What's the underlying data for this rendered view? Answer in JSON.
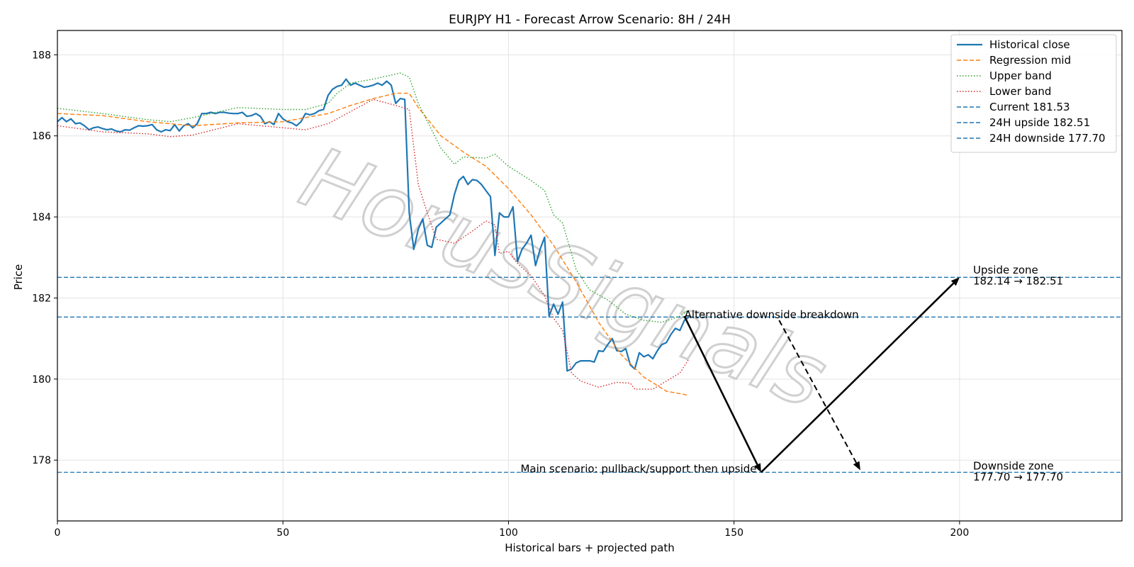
{
  "chart_data": {
    "type": "line",
    "title": "EURJPY H1 - Forecast Arrow Scenario: 8H / 24H",
    "xlabel": "Historical bars + projected path",
    "ylabel": "Price",
    "xlim": [
      0,
      236
    ],
    "ylim": [
      176.5,
      188.6
    ],
    "grid": true,
    "x_ticks": [
      0,
      50,
      100,
      150,
      200
    ],
    "y_ticks": [
      178,
      180,
      182,
      184,
      186,
      188
    ],
    "legend_position": "top-right",
    "watermark": "HorusSignals",
    "series": [
      {
        "name": "Historical close",
        "color": "#1f77b4",
        "style": "solid",
        "points": [
          [
            0,
            186.35
          ],
          [
            1,
            186.45
          ],
          [
            2,
            186.35
          ],
          [
            3,
            186.42
          ],
          [
            4,
            186.3
          ],
          [
            5,
            186.32
          ],
          [
            6,
            186.25
          ],
          [
            7,
            186.15
          ],
          [
            8,
            186.2
          ],
          [
            9,
            186.22
          ],
          [
            10,
            186.18
          ],
          [
            11,
            186.15
          ],
          [
            12,
            186.17
          ],
          [
            13,
            186.12
          ],
          [
            14,
            186.1
          ],
          [
            15,
            186.15
          ],
          [
            16,
            186.14
          ],
          [
            17,
            186.2
          ],
          [
            18,
            186.25
          ],
          [
            19,
            186.24
          ],
          [
            20,
            186.25
          ],
          [
            21,
            186.28
          ],
          [
            22,
            186.15
          ],
          [
            23,
            186.1
          ],
          [
            24,
            186.15
          ],
          [
            25,
            186.13
          ],
          [
            26,
            186.28
          ],
          [
            27,
            186.12
          ],
          [
            28,
            186.25
          ],
          [
            29,
            186.3
          ],
          [
            30,
            186.2
          ],
          [
            31,
            186.3
          ],
          [
            32,
            186.55
          ],
          [
            33,
            186.55
          ],
          [
            34,
            186.58
          ],
          [
            35,
            186.55
          ],
          [
            36,
            186.58
          ],
          [
            37,
            186.58
          ],
          [
            38,
            186.56
          ],
          [
            39,
            186.55
          ],
          [
            40,
            186.55
          ],
          [
            41,
            186.58
          ],
          [
            42,
            186.48
          ],
          [
            43,
            186.5
          ],
          [
            44,
            186.55
          ],
          [
            45,
            186.48
          ],
          [
            46,
            186.3
          ],
          [
            47,
            186.35
          ],
          [
            48,
            186.28
          ],
          [
            49,
            186.55
          ],
          [
            50,
            186.42
          ],
          [
            51,
            186.35
          ],
          [
            52,
            186.32
          ],
          [
            53,
            186.25
          ],
          [
            54,
            186.35
          ],
          [
            55,
            186.55
          ],
          [
            56,
            186.52
          ],
          [
            57,
            186.55
          ],
          [
            58,
            186.62
          ],
          [
            59,
            186.65
          ],
          [
            60,
            187.0
          ],
          [
            61,
            187.15
          ],
          [
            62,
            187.22
          ],
          [
            63,
            187.25
          ],
          [
            64,
            187.4
          ],
          [
            65,
            187.25
          ],
          [
            66,
            187.3
          ],
          [
            67,
            187.25
          ],
          [
            68,
            187.2
          ],
          [
            69,
            187.22
          ],
          [
            70,
            187.25
          ],
          [
            71,
            187.3
          ],
          [
            72,
            187.25
          ],
          [
            73,
            187.35
          ],
          [
            74,
            187.25
          ],
          [
            75,
            186.8
          ],
          [
            76,
            186.92
          ],
          [
            77,
            186.9
          ],
          [
            78,
            184.1
          ],
          [
            79,
            183.2
          ],
          [
            80,
            183.7
          ],
          [
            81,
            183.95
          ],
          [
            82,
            183.3
          ],
          [
            83,
            183.25
          ],
          [
            84,
            183.75
          ],
          [
            85,
            183.85
          ],
          [
            86,
            183.95
          ],
          [
            87,
            184.05
          ],
          [
            88,
            184.55
          ],
          [
            89,
            184.9
          ],
          [
            90,
            185.0
          ],
          [
            91,
            184.8
          ],
          [
            92,
            184.92
          ],
          [
            93,
            184.9
          ],
          [
            94,
            184.8
          ],
          [
            95,
            184.65
          ],
          [
            96,
            184.5
          ],
          [
            97,
            183.05
          ],
          [
            98,
            184.1
          ],
          [
            99,
            184.0
          ],
          [
            100,
            184.0
          ],
          [
            101,
            184.25
          ],
          [
            102,
            182.9
          ],
          [
            103,
            183.2
          ],
          [
            104,
            183.35
          ],
          [
            105,
            183.55
          ],
          [
            106,
            182.8
          ],
          [
            107,
            183.2
          ],
          [
            108,
            183.5
          ],
          [
            109,
            181.55
          ],
          [
            110,
            181.85
          ],
          [
            111,
            181.6
          ],
          [
            112,
            181.9
          ],
          [
            113,
            180.2
          ],
          [
            114,
            180.25
          ],
          [
            115,
            180.4
          ],
          [
            116,
            180.45
          ],
          [
            117,
            180.45
          ],
          [
            118,
            180.45
          ],
          [
            119,
            180.42
          ],
          [
            120,
            180.7
          ],
          [
            121,
            180.68
          ],
          [
            122,
            180.85
          ],
          [
            123,
            181.0
          ],
          [
            124,
            180.7
          ],
          [
            125,
            180.68
          ],
          [
            126,
            180.75
          ],
          [
            127,
            180.35
          ],
          [
            128,
            180.25
          ],
          [
            129,
            180.65
          ],
          [
            130,
            180.55
          ],
          [
            131,
            180.6
          ],
          [
            132,
            180.5
          ],
          [
            133,
            180.7
          ],
          [
            134,
            180.85
          ],
          [
            135,
            180.9
          ],
          [
            136,
            181.1
          ],
          [
            137,
            181.25
          ],
          [
            138,
            181.2
          ],
          [
            139,
            181.45
          ],
          [
            140,
            181.53
          ]
        ]
      },
      {
        "name": "Regression mid",
        "color": "#ff7f0e",
        "style": "dashed",
        "points": [
          [
            0,
            186.55
          ],
          [
            10,
            186.5
          ],
          [
            20,
            186.35
          ],
          [
            30,
            186.25
          ],
          [
            40,
            186.32
          ],
          [
            50,
            186.35
          ],
          [
            60,
            186.55
          ],
          [
            65,
            186.75
          ],
          [
            70,
            186.92
          ],
          [
            75,
            187.05
          ],
          [
            78,
            187.05
          ],
          [
            80,
            186.7
          ],
          [
            85,
            186.0
          ],
          [
            90,
            185.6
          ],
          [
            95,
            185.25
          ],
          [
            100,
            184.7
          ],
          [
            105,
            184.05
          ],
          [
            110,
            183.3
          ],
          [
            115,
            182.4
          ],
          [
            120,
            181.4
          ],
          [
            125,
            180.6
          ],
          [
            130,
            180.05
          ],
          [
            135,
            179.7
          ],
          [
            140,
            179.6
          ]
        ]
      },
      {
        "name": "Upper band",
        "color": "#2ca02c",
        "style": "dotted",
        "points": [
          [
            0,
            186.68
          ],
          [
            10,
            186.55
          ],
          [
            20,
            186.4
          ],
          [
            25,
            186.35
          ],
          [
            30,
            186.45
          ],
          [
            40,
            186.7
          ],
          [
            50,
            186.65
          ],
          [
            55,
            186.65
          ],
          [
            60,
            186.8
          ],
          [
            62,
            187.05
          ],
          [
            65,
            187.3
          ],
          [
            70,
            187.4
          ],
          [
            74,
            187.5
          ],
          [
            76,
            187.55
          ],
          [
            78,
            187.45
          ],
          [
            80,
            186.8
          ],
          [
            85,
            185.7
          ],
          [
            88,
            185.3
          ],
          [
            90,
            185.48
          ],
          [
            95,
            185.45
          ],
          [
            97,
            185.55
          ],
          [
            100,
            185.25
          ],
          [
            105,
            184.9
          ],
          [
            108,
            184.65
          ],
          [
            110,
            184.05
          ],
          [
            112,
            183.85
          ],
          [
            115,
            182.7
          ],
          [
            118,
            182.2
          ],
          [
            122,
            181.95
          ],
          [
            126,
            181.6
          ],
          [
            130,
            181.45
          ],
          [
            134,
            181.4
          ],
          [
            138,
            181.55
          ],
          [
            140,
            181.7
          ]
        ]
      },
      {
        "name": "Lower band",
        "color": "#d62728",
        "style": "dotted",
        "points": [
          [
            0,
            186.25
          ],
          [
            10,
            186.1
          ],
          [
            20,
            186.05
          ],
          [
            25,
            185.98
          ],
          [
            30,
            186.02
          ],
          [
            40,
            186.3
          ],
          [
            50,
            186.2
          ],
          [
            55,
            186.15
          ],
          [
            60,
            186.3
          ],
          [
            65,
            186.6
          ],
          [
            70,
            186.9
          ],
          [
            75,
            186.75
          ],
          [
            78,
            186.65
          ],
          [
            80,
            184.8
          ],
          [
            82,
            184.1
          ],
          [
            84,
            183.45
          ],
          [
            88,
            183.35
          ],
          [
            92,
            183.65
          ],
          [
            95,
            183.9
          ],
          [
            97,
            183.8
          ],
          [
            98,
            183.1
          ],
          [
            100,
            183.15
          ],
          [
            102,
            182.85
          ],
          [
            105,
            182.55
          ],
          [
            108,
            182.05
          ],
          [
            110,
            181.5
          ],
          [
            112,
            181.2
          ],
          [
            114,
            180.15
          ],
          [
            116,
            179.95
          ],
          [
            120,
            179.8
          ],
          [
            124,
            179.92
          ],
          [
            127,
            179.9
          ],
          [
            128,
            179.75
          ],
          [
            132,
            179.75
          ],
          [
            135,
            179.95
          ],
          [
            138,
            180.15
          ],
          [
            140,
            180.5
          ]
        ]
      }
    ],
    "hlines": [
      {
        "name": "Current 181.53",
        "value": 181.53,
        "color": "#1f77b4"
      },
      {
        "name": "24H upside 182.51",
        "value": 182.51,
        "color": "#1f77b4"
      },
      {
        "name": "24H downside 177.70",
        "value": 177.7,
        "color": "#1f77b4"
      }
    ],
    "arrows": [
      {
        "from": [
          139,
          181.55
        ],
        "to": [
          156,
          177.7
        ],
        "style": "solid"
      },
      {
        "from": [
          156,
          177.7
        ],
        "to": [
          200,
          182.51
        ],
        "style": "solid"
      },
      {
        "from": [
          160,
          181.45
        ],
        "to": [
          178,
          177.75
        ],
        "style": "dashed"
      }
    ],
    "annotations": [
      {
        "text": "Alternative downside breakdown",
        "x": 139,
        "y": 181.5,
        "anchor": "start"
      },
      {
        "text": "Main scenario: pullback/support then upside",
        "x": 155,
        "y": 177.7,
        "anchor": "end"
      },
      {
        "text": "Upside zone",
        "x": 203,
        "y": 182.6,
        "anchor": "start"
      },
      {
        "text": "182.14 → 182.51",
        "x": 203,
        "y": 182.33,
        "anchor": "start"
      },
      {
        "text": "Downside zone",
        "x": 203,
        "y": 177.77,
        "anchor": "start"
      },
      {
        "text": "177.70 → 177.70",
        "x": 203,
        "y": 177.5,
        "anchor": "start"
      }
    ]
  }
}
